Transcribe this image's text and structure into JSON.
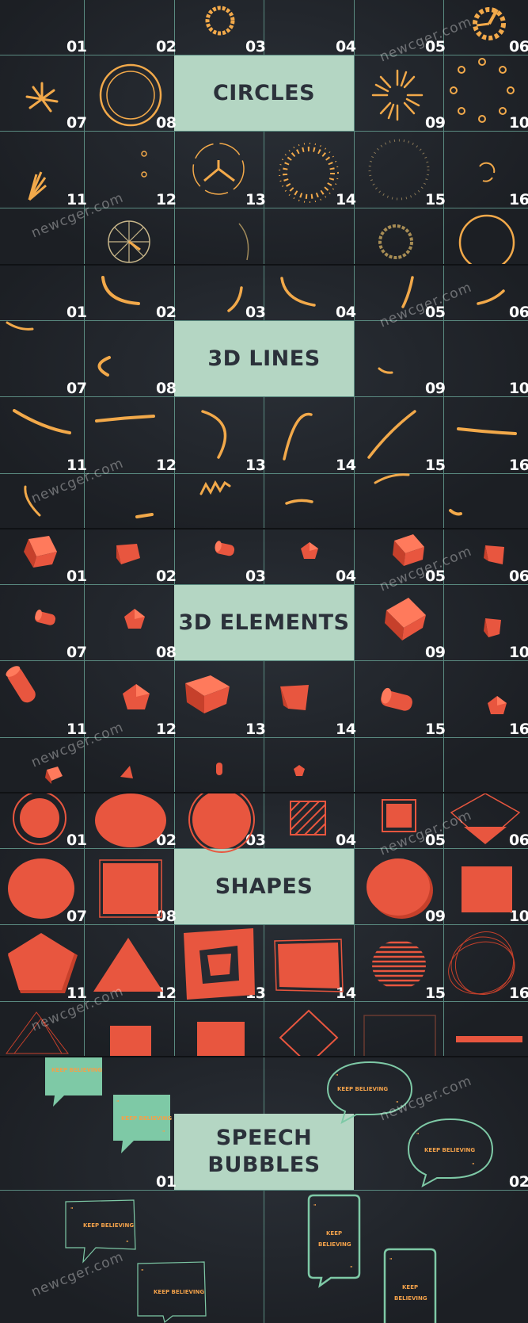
{
  "sections": [
    {
      "title": "CIRCLES",
      "numbers": [
        "01",
        "02",
        "03",
        "04",
        "05",
        "06",
        "07",
        "08",
        "09",
        "10",
        "11",
        "12",
        "13",
        "14",
        "15",
        "16"
      ]
    },
    {
      "title": "3D LINES",
      "numbers": [
        "01",
        "02",
        "03",
        "04",
        "05",
        "06",
        "07",
        "08",
        "09",
        "10",
        "11",
        "12",
        "13",
        "14",
        "15",
        "16"
      ]
    },
    {
      "title": "3D ELEMENTS",
      "numbers": [
        "01",
        "02",
        "03",
        "04",
        "05",
        "06",
        "07",
        "08",
        "09",
        "10",
        "11",
        "12",
        "13",
        "14",
        "15",
        "16"
      ]
    },
    {
      "title": "SHAPES",
      "numbers": [
        "01",
        "02",
        "03",
        "04",
        "05",
        "06",
        "07",
        "08",
        "09",
        "10",
        "11",
        "12",
        "13",
        "14",
        "15",
        "16"
      ]
    },
    {
      "title_line1": "SPEECH",
      "title_line2": "BUBBLES",
      "numbers": [
        "01",
        "02"
      ],
      "bubble_text": "KEEP BELIEVING",
      "bubble_line1": "KEEP",
      "bubble_line2": "BELIEVING"
    }
  ],
  "watermark": "newcger.com",
  "colors": {
    "background": "#1f2329",
    "grid": "#5a8a80",
    "title_box": "#b4d6c3",
    "title_text": "#2b313a",
    "accent_gold": "#f2a94a",
    "accent_red": "#e8563f",
    "bubble_green": "#7ec9a6",
    "number": "#ffffff"
  },
  "icons": [
    "circle-burst-icon",
    "ring-icon",
    "gear-icon",
    "curve-line-icon",
    "cube-icon",
    "cylinder-icon",
    "pentagon-icon",
    "triangle-icon",
    "square-icon",
    "speech-bubble-icon"
  ]
}
